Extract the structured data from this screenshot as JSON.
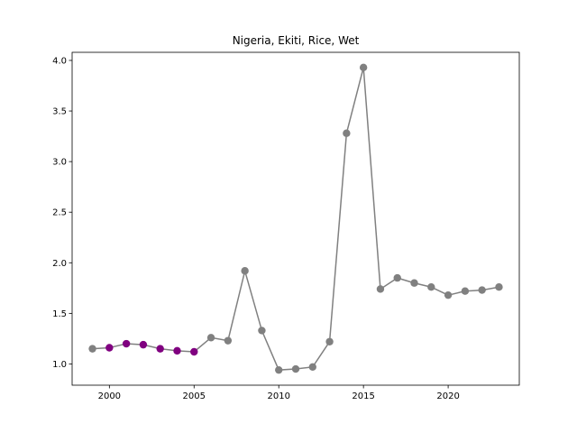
{
  "chart_data": {
    "type": "line",
    "title": "Nigeria, Ekiti, Rice, Wet",
    "xlabel": "",
    "ylabel": "",
    "xlim": [
      1997.8,
      2024.2
    ],
    "ylim": [
      0.79,
      4.08
    ],
    "x_ticks": [
      2000,
      2005,
      2010,
      2015,
      2020
    ],
    "y_ticks": [
      1.0,
      1.5,
      2.0,
      2.5,
      3.0,
      3.5,
      4.0
    ],
    "y_tick_labels": [
      "1.0",
      "1.5",
      "2.0",
      "2.5",
      "3.0",
      "3.5",
      "4.0"
    ],
    "grid": false,
    "series": [
      {
        "line_color": "#808080",
        "x": [
          1999,
          2000,
          2001,
          2002,
          2003,
          2004,
          2005,
          2006,
          2007,
          2008,
          2009,
          2010,
          2011,
          2012,
          2013,
          2014,
          2015,
          2016,
          2017,
          2018,
          2019,
          2020,
          2021,
          2022,
          2023
        ],
        "y": [
          1.15,
          1.16,
          1.2,
          1.19,
          1.15,
          1.13,
          1.12,
          1.26,
          1.23,
          1.92,
          1.33,
          0.94,
          0.95,
          0.97,
          1.22,
          3.28,
          3.93,
          1.74,
          1.85,
          1.8,
          1.76,
          1.68,
          1.72,
          1.73,
          1.76
        ],
        "highlighted_x": [
          2000,
          2001,
          2002,
          2003,
          2004,
          2005
        ]
      }
    ],
    "colors": {
      "normal": "#808080",
      "highlight": "#800080"
    }
  }
}
